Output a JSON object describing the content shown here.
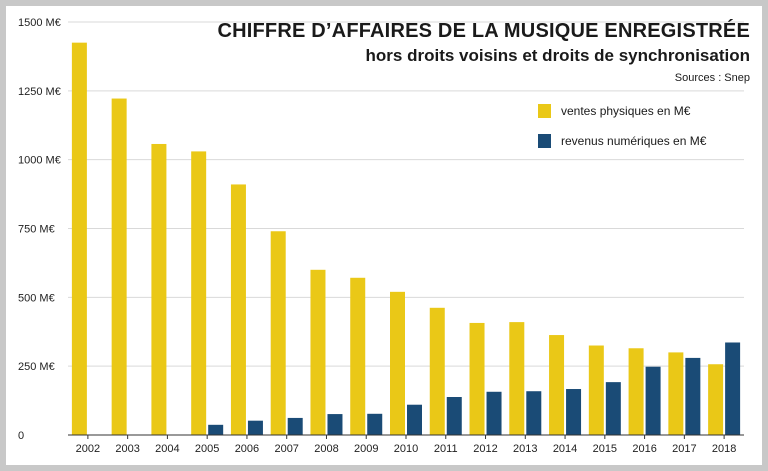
{
  "header": {
    "title": "CHIFFRE D’AFFAIRES DE LA MUSIQUE ENREGISTRÉE",
    "subtitle": "hors droits voisins et droits de synchronisation",
    "source": "Sources : Snep"
  },
  "colors": {
    "physical": "#eac817",
    "digital": "#1a4b76",
    "grid": "#d9d9d9",
    "axis": "#333333",
    "background": "#c8c8c8"
  },
  "chart_data": {
    "type": "bar",
    "title": "CHIFFRE D’AFFAIRES DE LA MUSIQUE ENREGISTRÉE",
    "subtitle": "hors droits voisins et droits de synchronisation",
    "categories": [
      "2002",
      "2003",
      "2004",
      "2005",
      "2006",
      "2007",
      "2008",
      "2009",
      "2010",
      "2011",
      "2012",
      "2013",
      "2014",
      "2015",
      "2016",
      "2017",
      "2018"
    ],
    "series": [
      {
        "name": "ventes physiques en M€",
        "color": "#eac817",
        "values": [
          1425,
          1222,
          1057,
          1030,
          910,
          740,
          600,
          571,
          520,
          462,
          407,
          410,
          363,
          325,
          315,
          300,
          257
        ]
      },
      {
        "name": "revenus numériques en M€",
        "color": "#1a4b76",
        "values": [
          null,
          null,
          null,
          37,
          52,
          62,
          76,
          77,
          110,
          138,
          157,
          159,
          167,
          192,
          248,
          280,
          336
        ]
      }
    ],
    "ylim": [
      0,
      1500
    ],
    "yticks": [
      0,
      250,
      500,
      750,
      1000,
      1250,
      1500
    ],
    "ytick_labels": [
      "0",
      "250 M€",
      "500 M€",
      "750 M€",
      "1000 M€",
      "1250 M€",
      "1500 M€"
    ],
    "grid": true,
    "legend_position": "top-right"
  }
}
